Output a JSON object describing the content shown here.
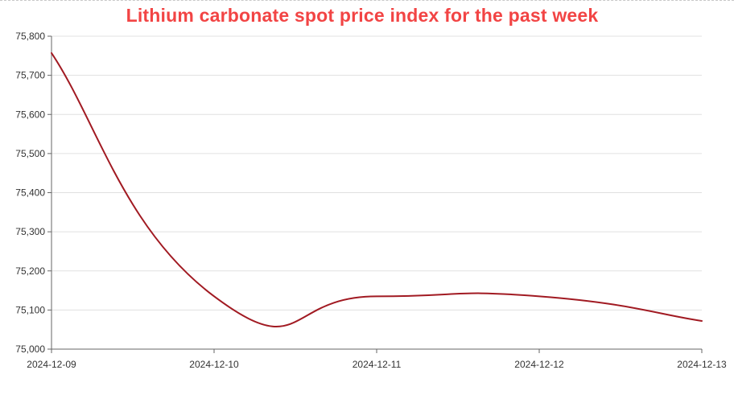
{
  "chart_data": {
    "type": "line",
    "title": "Lithium carbonate spot price index for the past week",
    "x": [
      "2024-12-09",
      "2024-12-10",
      "2024-12-11",
      "2024-12-12",
      "2024-12-13"
    ],
    "series": [
      {
        "name": "Lithium carbonate spot price index",
        "values": [
          75757,
          75135,
          75135,
          75135,
          75072
        ]
      }
    ],
    "yticks": [
      "75,000",
      "75,100",
      "75,200",
      "75,300",
      "75,400",
      "75,500",
      "75,600",
      "75,700",
      "75,800"
    ],
    "ylim": [
      75000,
      75800
    ],
    "xlabel": "",
    "ylabel": "",
    "grid": true,
    "colors": {
      "title": "#f24444",
      "line": "#a11a22",
      "grid": "#e0e0e0",
      "axis": "#666666"
    }
  }
}
